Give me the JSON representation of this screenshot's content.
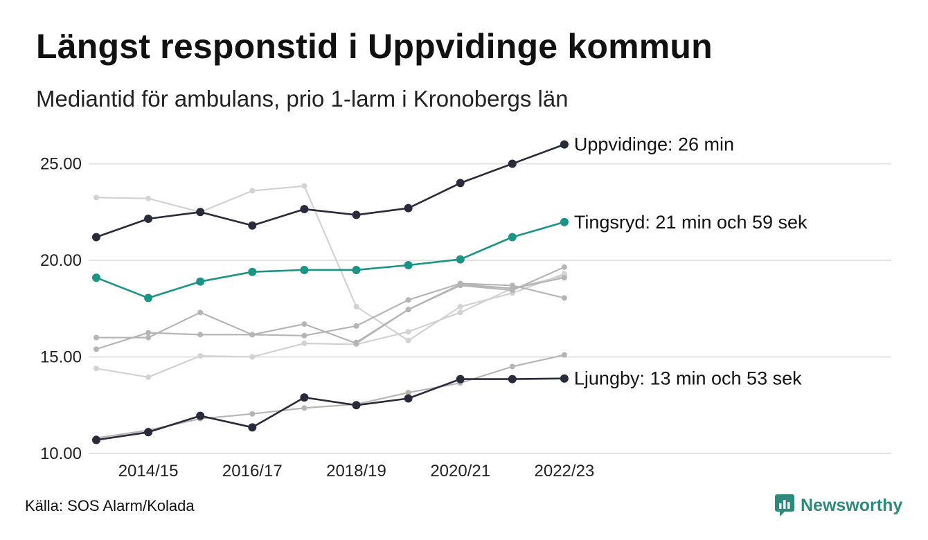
{
  "header": {
    "title": "Längst responstid i Uppvidinge kommun",
    "subtitle": "Mediantid för ambulans, prio 1-larm i Kronobergs län"
  },
  "footer": {
    "source": "Källa: SOS Alarm/Kolada",
    "brand": "Newsworthy"
  },
  "colors": {
    "highlight": "#2a2b3a",
    "accent": "#1a9485",
    "context_dark": "#b5b5b5",
    "context_light": "#d2d2d2",
    "grid": "#e3e3e3",
    "brand": "#2e8b7c"
  },
  "chart_data": {
    "type": "line",
    "x": [
      "2013/14",
      "2014/15",
      "2015/16",
      "2016/17",
      "2017/18",
      "2018/19",
      "2019/20",
      "2020/21",
      "2021/22",
      "2022/23"
    ],
    "x_tick_labels": [
      "2014/15",
      "2016/17",
      "2018/19",
      "2020/21",
      "2022/23"
    ],
    "y_ticks": [
      "10.00",
      "15.00",
      "20.00",
      "25.00"
    ],
    "ylim": [
      10,
      26.5
    ],
    "grid": true,
    "series": [
      {
        "name": "Uppvidinge",
        "label": "Uppvidinge: 26 min",
        "style": "highlight",
        "values": [
          21.2,
          22.15,
          22.5,
          21.8,
          22.65,
          22.35,
          22.7,
          24.0,
          25.0,
          26.0
        ]
      },
      {
        "name": "Tingsryd",
        "label": "Tingsryd: 21 min och 59 sek",
        "style": "accent",
        "values": [
          19.1,
          18.05,
          18.9,
          19.4,
          19.5,
          19.5,
          19.75,
          20.05,
          21.2,
          21.98
        ]
      },
      {
        "name": "Ljungby",
        "label": "Ljungby: 13 min och 53 sek",
        "style": "highlight",
        "values": [
          10.7,
          11.1,
          11.95,
          11.35,
          12.9,
          12.5,
          12.85,
          13.85,
          13.85,
          13.88
        ]
      },
      {
        "style": "context_light",
        "values": [
          23.25,
          23.2,
          22.5,
          23.6,
          23.85,
          17.6,
          15.85,
          17.6,
          18.3,
          19.3
        ]
      },
      {
        "style": "context_dark",
        "values": [
          16.0,
          16.0,
          17.3,
          16.15,
          16.7,
          15.7,
          17.45,
          18.75,
          18.55,
          19.1
        ]
      },
      {
        "style": "context_dark",
        "values": [
          15.4,
          16.25,
          16.15,
          16.15,
          16.1,
          16.6,
          17.95,
          18.8,
          18.7,
          18.05
        ]
      },
      {
        "style": "context_dark",
        "values": [
          null,
          null,
          null,
          null,
          null,
          15.75,
          17.45,
          18.7,
          18.45,
          19.65
        ]
      },
      {
        "style": "context_light",
        "values": [
          14.4,
          13.95,
          15.05,
          15.0,
          15.7,
          15.65,
          16.3,
          17.3,
          18.55,
          19.2
        ]
      },
      {
        "style": "context_dark",
        "values": [
          10.8,
          11.2,
          11.8,
          12.05,
          12.35,
          12.55,
          13.15,
          13.65,
          14.5,
          15.1
        ]
      }
    ]
  }
}
